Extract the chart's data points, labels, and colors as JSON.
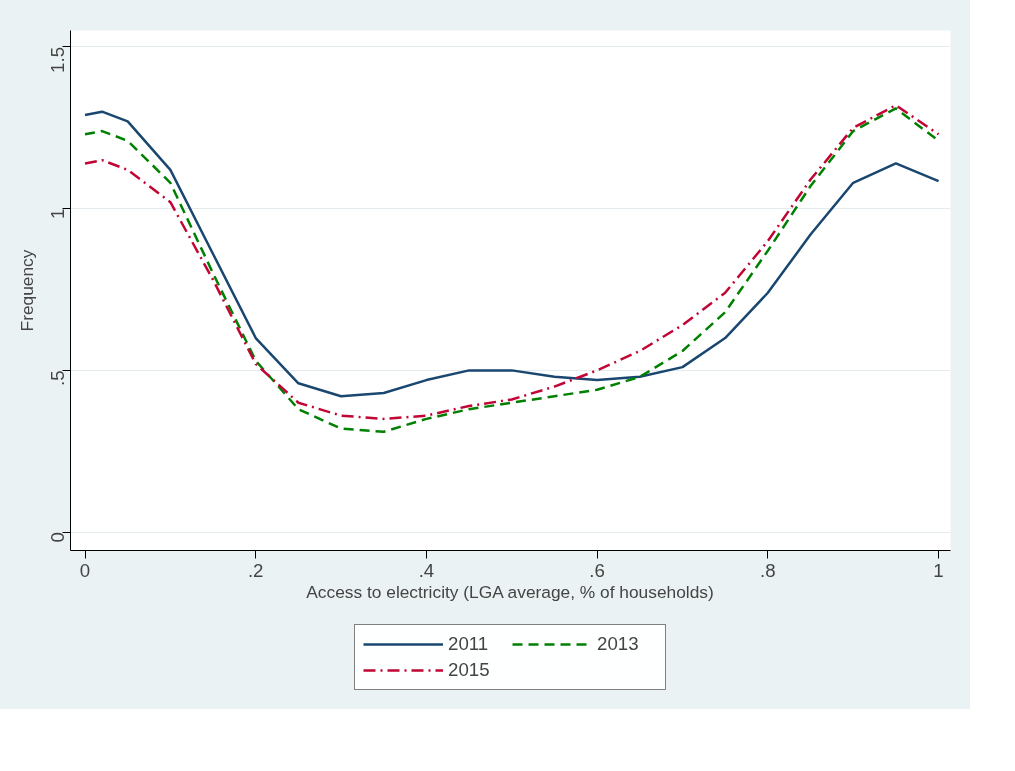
{
  "chart_data": {
    "type": "line",
    "xlabel": "Access to electricity (LGA average, % of households)",
    "ylabel": "Frequency",
    "x": [
      0,
      0.02,
      0.05,
      0.1,
      0.15,
      0.2,
      0.25,
      0.3,
      0.35,
      0.4,
      0.45,
      0.5,
      0.55,
      0.6,
      0.65,
      0.7,
      0.75,
      0.8,
      0.85,
      0.9,
      0.95,
      1
    ],
    "series": [
      {
        "name": "2011",
        "color": "#1a476f",
        "line_style": "solid",
        "values": [
          1.29,
          1.3,
          1.27,
          1.12,
          0.86,
          0.6,
          0.46,
          0.42,
          0.43,
          0.47,
          0.5,
          0.5,
          0.48,
          0.47,
          0.48,
          0.51,
          0.6,
          0.74,
          0.92,
          1.08,
          1.14,
          1.085
        ]
      },
      {
        "name": "2013",
        "color": "#008000",
        "line_style": "dashed",
        "values": [
          1.23,
          1.24,
          1.21,
          1.08,
          0.8,
          0.53,
          0.38,
          0.32,
          0.31,
          0.35,
          0.38,
          0.4,
          0.42,
          0.44,
          0.48,
          0.56,
          0.68,
          0.87,
          1.07,
          1.24,
          1.31,
          1.21
        ]
      },
      {
        "name": "2015",
        "color": "#c10534",
        "line_style": "dashdot",
        "values": [
          1.14,
          1.15,
          1.12,
          1.02,
          0.78,
          0.52,
          0.4,
          0.36,
          0.35,
          0.36,
          0.39,
          0.41,
          0.45,
          0.5,
          0.56,
          0.64,
          0.74,
          0.9,
          1.09,
          1.25,
          1.32,
          1.23
        ]
      }
    ],
    "xlim": [
      -0.017,
      1.014
    ],
    "ylim": [
      -0.057,
      1.551
    ],
    "xticks": [
      0,
      {
        "value": 0.2,
        "label": ".2"
      },
      {
        "value": 0.4,
        "label": ".4"
      },
      {
        "value": 0.6,
        "label": ".6"
      },
      {
        "value": 0.8,
        "label": ".8"
      },
      1
    ],
    "yticks": [
      0,
      {
        "value": 0.5,
        "label": ".5"
      },
      1,
      1.5
    ],
    "grid": "y",
    "legend": "bottom",
    "marker": "none"
  }
}
